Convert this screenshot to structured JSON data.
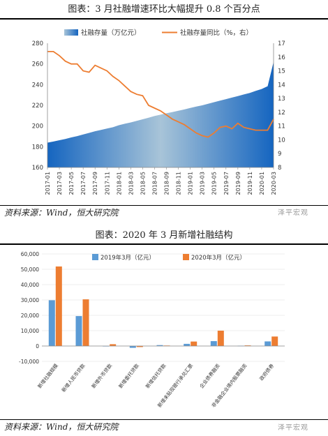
{
  "chart1": {
    "title": "图表：3 月社融增速环比大幅提升 0.8 个百分点",
    "source": "资料来源：Wind，恒大研究院",
    "watermark": "泽平宏观",
    "colors": {
      "area_light": "#a8c4d8",
      "area_dark": "#1565c0",
      "line": "#ed7d31",
      "area_legend": "#2e75b6"
    }
  },
  "chart2": {
    "title": "图表：2020 年 3 月新增社融结构",
    "source": "资料来源：Wind，恒大研究院",
    "watermark": "泽平宏观",
    "colors": {
      "s2019": "#5b9bd5",
      "s2020": "#ed7d31"
    }
  },
  "chart_data": [
    {
      "type": "area+line",
      "title": "图表：3 月社融增速环比大幅提升 0.8 个百分点",
      "x_tick_labels": [
        "2017-01",
        "2017-03",
        "2017-05",
        "2017-07",
        "2017-09",
        "2017-11",
        "2018-01",
        "2018-03",
        "2018-05",
        "2018-07",
        "2018-09",
        "2018-11",
        "2019-01",
        "2019-03",
        "2019-05",
        "2019-07",
        "2019-09",
        "2019-11",
        "2020-01",
        "2020-03"
      ],
      "months": 39,
      "series": [
        {
          "name": "社融存量（万亿元）",
          "axis": "left",
          "type": "area",
          "values": [
            183.9,
            185.0,
            186.3,
            187.5,
            189.0,
            190.3,
            191.8,
            193.4,
            195.0,
            196.3,
            197.6,
            198.8,
            200.8,
            202.2,
            203.5,
            205.0,
            206.5,
            208.0,
            209.7,
            211.0,
            212.3,
            213.5,
            214.8,
            216.0,
            217.5,
            218.8,
            220.0,
            221.5,
            223.0,
            224.5,
            226.0,
            227.5,
            229.0,
            230.5,
            232.0,
            234.0,
            235.8,
            238.5,
            262.0
          ]
        },
        {
          "name": "社融存量同比（%，右）",
          "axis": "right",
          "type": "line",
          "values": [
            16.4,
            16.4,
            16.1,
            15.7,
            15.5,
            15.5,
            15.0,
            14.9,
            15.4,
            15.2,
            15.0,
            14.6,
            14.3,
            13.9,
            13.5,
            13.3,
            13.2,
            12.5,
            12.3,
            12.1,
            11.8,
            11.5,
            11.3,
            11.1,
            10.8,
            10.5,
            10.3,
            10.2,
            10.5,
            10.9,
            11.0,
            10.8,
            11.2,
            10.9,
            10.8,
            10.7,
            10.7,
            10.7,
            11.5
          ]
        }
      ],
      "y_left": {
        "min": 160,
        "max": 280,
        "ticks": [
          160,
          180,
          200,
          220,
          240,
          260,
          280
        ]
      },
      "y_right": {
        "min": 8,
        "max": 17,
        "ticks": [
          8,
          9,
          10,
          11,
          12,
          13,
          14,
          15,
          16,
          17
        ]
      },
      "legend_position": "top"
    },
    {
      "type": "bar",
      "title": "图表：2020 年 3 月新增社融结构",
      "categories": [
        "新增社融规模",
        "新增人民币贷款",
        "新增外币贷款",
        "新增委托贷款",
        "新增信托贷款",
        "新增未贴现银行承兑汇票",
        "企业债券融资",
        "非金融企业境内股票融资",
        "政府债券"
      ],
      "series": [
        {
          "name": "2019年3月（亿元）",
          "values": [
            29800,
            19500,
            0,
            -1200,
            600,
            1400,
            3200,
            200,
            3000
          ]
        },
        {
          "name": "2020年3月（亿元）",
          "values": [
            51800,
            30400,
            1200,
            -700,
            300,
            2900,
            10000,
            400,
            6200
          ]
        }
      ],
      "y": {
        "min": -10000,
        "max": 60000,
        "ticks": [
          -10000,
          0,
          10000,
          20000,
          30000,
          40000,
          50000,
          60000
        ]
      },
      "y_tick_labels": [
        "-10,000",
        "0",
        "10,000",
        "20,000",
        "30,000",
        "40,000",
        "50,000",
        "60,000"
      ],
      "legend_position": "top"
    }
  ]
}
